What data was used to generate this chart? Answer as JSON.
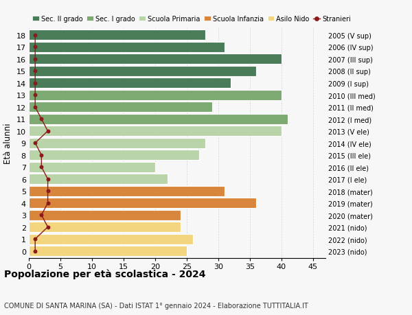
{
  "ages": [
    18,
    17,
    16,
    15,
    14,
    13,
    12,
    11,
    10,
    9,
    8,
    7,
    6,
    5,
    4,
    3,
    2,
    1,
    0
  ],
  "bar_values": [
    28,
    31,
    40,
    36,
    32,
    40,
    29,
    41,
    40,
    28,
    27,
    20,
    22,
    31,
    36,
    24,
    24,
    26,
    25
  ],
  "stranieri_values": [
    1,
    1,
    1,
    1,
    1,
    1,
    1,
    2,
    3,
    1,
    2,
    2,
    3,
    3,
    3,
    2,
    3,
    1,
    1
  ],
  "bar_colors": [
    "#4a7c59",
    "#4a7c59",
    "#4a7c59",
    "#4a7c59",
    "#4a7c59",
    "#7daa72",
    "#7daa72",
    "#7daa72",
    "#b8d4a8",
    "#b8d4a8",
    "#b8d4a8",
    "#b8d4a8",
    "#b8d4a8",
    "#d9863d",
    "#d9863d",
    "#d9863d",
    "#f2d57e",
    "#f2d57e",
    "#f2d57e"
  ],
  "right_labels": [
    "2005 (V sup)",
    "2006 (IV sup)",
    "2007 (III sup)",
    "2008 (II sup)",
    "2009 (I sup)",
    "2010 (III med)",
    "2011 (II med)",
    "2012 (I med)",
    "2013 (V ele)",
    "2014 (IV ele)",
    "2015 (III ele)",
    "2016 (II ele)",
    "2017 (I ele)",
    "2018 (mater)",
    "2019 (mater)",
    "2020 (mater)",
    "2021 (nido)",
    "2022 (nido)",
    "2023 (nido)"
  ],
  "legend_labels": [
    "Sec. II grado",
    "Sec. I grado",
    "Scuola Primaria",
    "Scuola Infanzia",
    "Asilo Nido",
    "Stranieri"
  ],
  "legend_colors": [
    "#4a7c59",
    "#7daa72",
    "#b8d4a8",
    "#d9863d",
    "#f2d57e",
    "#8b1a1a"
  ],
  "stranieri_color": "#8b1a1a",
  "ylabel": "Età alunni",
  "title": "Popolazione per età scolastica - 2024",
  "subtitle": "COMUNE DI SANTA MARINA (SA) - Dati ISTAT 1° gennaio 2024 - Elaborazione TUTTITALIA.IT",
  "xlim": [
    0,
    47
  ],
  "xticks": [
    0,
    5,
    10,
    15,
    20,
    25,
    30,
    35,
    40,
    45
  ],
  "background_color": "#f7f7f7",
  "grid_color": "#cccccc"
}
